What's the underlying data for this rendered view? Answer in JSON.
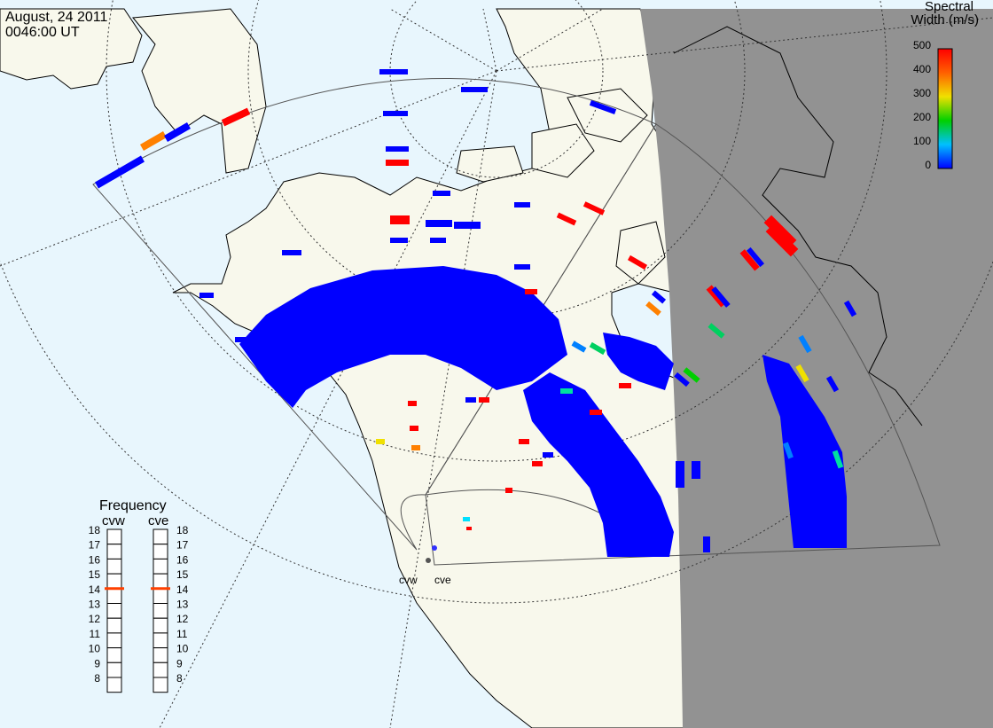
{
  "header": {
    "date": "August, 24 2011",
    "time": "0046:00 UT"
  },
  "legend": {
    "title_line1": "Spectral",
    "title_line2": "Width (m/s)",
    "ticks": [
      "500",
      "400",
      "300",
      "200",
      "100",
      "0"
    ],
    "colors": {
      "low": "#0000ff",
      "cyan": "#00e0ff",
      "green": "#00d000",
      "yellow": "#f0e000",
      "orange": "#ff8000",
      "high": "#ff0000"
    }
  },
  "frequency_panel": {
    "title": "Frequency",
    "columns": [
      {
        "name": "cvw",
        "current_mhz": 15
      },
      {
        "name": "cve",
        "current_mhz": 15
      }
    ],
    "scale": [
      "18",
      "17",
      "16",
      "15",
      "14",
      "13",
      "12",
      "11",
      "10",
      "9",
      "8"
    ],
    "marker_color": "#ff4000"
  },
  "radars": {
    "labels": [
      "cvw",
      "cve"
    ]
  },
  "map": {
    "ocean_color": "#e8f6fd",
    "land_color": "#f8f8ec",
    "night_color": "#929292"
  }
}
